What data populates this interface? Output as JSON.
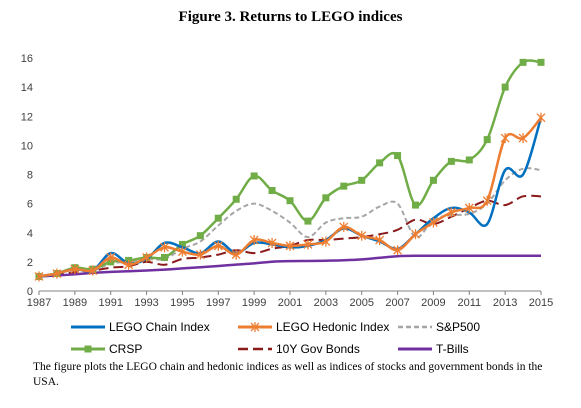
{
  "title": "Figure 3. Returns to LEGO indices",
  "caption": "The figure plots the LEGO chain and hedonic indices as well as indices of stocks and government bonds in the USA.",
  "chart_data": {
    "type": "line",
    "title": "Figure 3. Returns to LEGO indices",
    "xlabel": "",
    "ylabel": "",
    "xlim": [
      1987,
      2015
    ],
    "ylim": [
      0,
      16
    ],
    "x_ticks": [
      1987,
      1989,
      1991,
      1993,
      1995,
      1997,
      1999,
      2001,
      2003,
      2005,
      2007,
      2009,
      2011,
      2013,
      2015
    ],
    "y_ticks": [
      0,
      2,
      4,
      6,
      8,
      10,
      12,
      14,
      16
    ],
    "grid": false,
    "legend_position": "bottom",
    "x": [
      1987,
      1988,
      1989,
      1990,
      1991,
      1992,
      1993,
      1994,
      1995,
      1996,
      1997,
      1998,
      1999,
      2000,
      2001,
      2002,
      2003,
      2004,
      2005,
      2006,
      2007,
      2008,
      2009,
      2010,
      2011,
      2012,
      2013,
      2014,
      2015
    ],
    "series": [
      {
        "name": "LEGO Chain Index",
        "color": "#0070C0",
        "style": "solid",
        "marker": "none",
        "values": [
          1.0,
          1.2,
          1.5,
          1.4,
          2.6,
          1.9,
          2.2,
          3.3,
          3.0,
          2.6,
          3.4,
          2.6,
          3.3,
          3.2,
          3.0,
          3.1,
          3.5,
          4.3,
          3.8,
          3.4,
          2.9,
          3.9,
          5.0,
          5.7,
          5.4,
          4.6,
          8.3,
          8.0,
          11.9
        ]
      },
      {
        "name": "LEGO Hedonic Index",
        "color": "#ED7D31",
        "style": "solid",
        "marker": "star",
        "values": [
          1.0,
          1.2,
          1.5,
          1.4,
          2.3,
          1.8,
          2.3,
          3.0,
          2.7,
          2.5,
          3.1,
          2.5,
          3.5,
          3.3,
          3.1,
          3.2,
          3.4,
          4.4,
          3.8,
          3.5,
          2.8,
          3.9,
          4.7,
          5.4,
          5.7,
          6.2,
          10.5,
          10.5,
          11.9
        ]
      },
      {
        "name": "S&P500",
        "color": "#A6A6A6",
        "style": "dashed",
        "marker": "none",
        "values": [
          1.0,
          1.2,
          1.5,
          1.4,
          1.9,
          2.0,
          2.2,
          2.2,
          2.9,
          3.4,
          4.5,
          5.5,
          6.0,
          5.5,
          4.7,
          3.7,
          4.7,
          5.0,
          5.1,
          5.8,
          6.0,
          3.7,
          4.9,
          5.2,
          5.3,
          6.0,
          7.6,
          8.4,
          8.3
        ]
      },
      {
        "name": "CRSP",
        "color": "#70AD47",
        "style": "solid",
        "marker": "square",
        "values": [
          1.0,
          1.2,
          1.6,
          1.5,
          2.0,
          2.1,
          2.3,
          2.3,
          3.2,
          3.8,
          5.0,
          6.3,
          7.9,
          6.9,
          6.2,
          4.8,
          6.4,
          7.2,
          7.6,
          8.8,
          9.3,
          5.9,
          7.6,
          8.9,
          9.0,
          10.4,
          14.0,
          15.7,
          15.7
        ]
      },
      {
        "name": "10Y Gov Bonds",
        "color": "#8B1A1A",
        "style": "longdash",
        "marker": "none",
        "values": [
          1.0,
          1.1,
          1.3,
          1.4,
          1.6,
          1.7,
          2.0,
          1.8,
          2.2,
          2.3,
          2.5,
          2.8,
          2.6,
          2.9,
          3.1,
          3.5,
          3.5,
          3.6,
          3.7,
          3.9,
          4.2,
          4.9,
          4.6,
          5.1,
          5.7,
          6.2,
          5.9,
          6.5,
          6.5
        ]
      },
      {
        "name": "T-Bills",
        "color": "#7030A0",
        "style": "solid",
        "marker": "none",
        "values": [
          1.0,
          1.06,
          1.15,
          1.24,
          1.31,
          1.36,
          1.41,
          1.47,
          1.55,
          1.63,
          1.72,
          1.81,
          1.9,
          2.01,
          2.05,
          2.06,
          2.08,
          2.11,
          2.17,
          2.28,
          2.39,
          2.42,
          2.42,
          2.42,
          2.42,
          2.42,
          2.42,
          2.42,
          2.42
        ]
      }
    ]
  }
}
